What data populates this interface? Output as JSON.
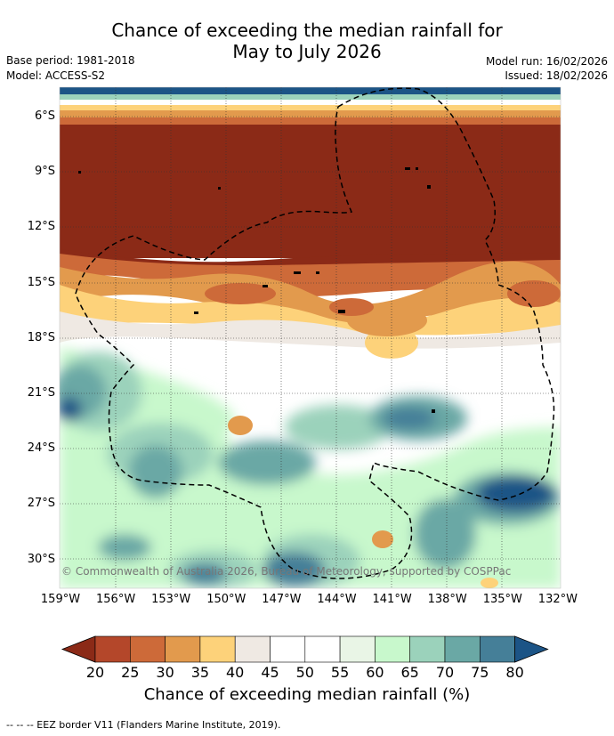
{
  "title_line1": "Chance of exceeding the median rainfall for",
  "title_line2": "May to July 2026",
  "base_period": "Base period: 1981-2018",
  "model": "Model: ACCESS-S2",
  "model_run": "Model run: 16/02/2026",
  "issued": "Issued: 18/02/2026",
  "copyright": "© Commonwealth of Australia 2026, Bureau of Meteorology, supported by COSPPac",
  "lat_ticks": [
    "6°S",
    "9°S",
    "12°S",
    "15°S",
    "18°S",
    "21°S",
    "24°S",
    "27°S",
    "30°S"
  ],
  "lon_ticks": [
    "159°W",
    "156°W",
    "153°W",
    "150°W",
    "147°W",
    "144°W",
    "141°W",
    "138°W",
    "135°W",
    "132°W"
  ],
  "colorbar": {
    "title": "Chance of exceeding median rainfall (%)",
    "labels": [
      "20",
      "25",
      "30",
      "35",
      "40",
      "45",
      "50",
      "55",
      "60",
      "65",
      "70",
      "75",
      "80"
    ],
    "colors": [
      "#8b2a17",
      "#b4472a",
      "#cd6a39",
      "#e29a4d",
      "#fdd27a",
      "#efe9e3",
      "#ffffff",
      "#ffffff",
      "#e9f5e6",
      "#c8f8cc",
      "#9bd2bb",
      "#6aa8a5",
      "#457f98",
      "#1c5486"
    ]
  },
  "footnote": "--  --  -- EEZ border V11 (Flanders Marine Institute, 2019)."
}
